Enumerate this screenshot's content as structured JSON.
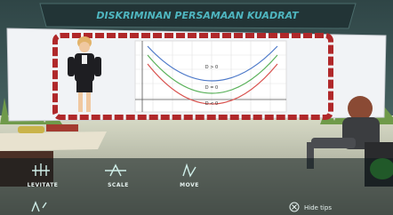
{
  "header": {
    "title": "DISKRIMINAN PERSAMAAN KUADRAT"
  },
  "board": {
    "graph_labels": [
      "D > 0",
      "D = 0",
      "D < 0"
    ]
  },
  "tips": {
    "items": [
      {
        "label": "LEVITATE"
      },
      {
        "label": "SCALE"
      },
      {
        "label": "MOVE"
      }
    ],
    "hide": "Hide tips"
  }
}
